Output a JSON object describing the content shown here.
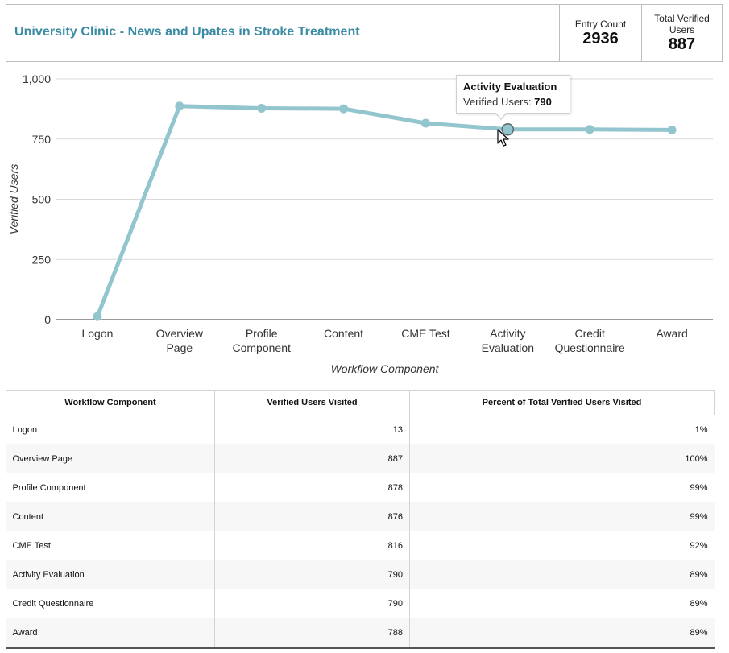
{
  "header": {
    "title": "University Clinic - News and Upates in Stroke Treatment",
    "entry_count_label": "Entry Count",
    "entry_count_value": "2936",
    "total_verified_label": "Total Verified Users",
    "total_verified_value": "887"
  },
  "chart_data": {
    "type": "line",
    "categories": [
      "Logon",
      "Overview Page",
      "Profile Component",
      "Content",
      "CME Test",
      "Activity Evaluation",
      "Credit Questionnaire",
      "Award"
    ],
    "category_lines": [
      [
        "Logon"
      ],
      [
        "Overview",
        "Page"
      ],
      [
        "Profile",
        "Component"
      ],
      [
        "Content"
      ],
      [
        "CME Test"
      ],
      [
        "Activity",
        "Evaluation"
      ],
      [
        "Credit",
        "Questionnaire"
      ],
      [
        "Award"
      ]
    ],
    "series": [
      {
        "values": [
          13,
          887,
          878,
          876,
          816,
          790,
          790,
          788
        ]
      }
    ],
    "xlabel": "Workflow Component",
    "ylabel": "Verified Users",
    "ylim": [
      0,
      1000
    ],
    "yticks": [
      0,
      250,
      500,
      750,
      1000
    ],
    "ytick_labels": [
      "0",
      "250",
      "500",
      "750",
      "1,000"
    ],
    "grid": true,
    "line_color": "#93c5ce",
    "tooltip": {
      "title": "Activity Evaluation",
      "label": "Verified Users:",
      "value": "790"
    }
  },
  "table": {
    "columns": [
      "Workflow Component",
      "Verified Users Visited",
      "Percent of Total Verified Users Visited"
    ],
    "rows": [
      [
        "Logon",
        "13",
        "1%"
      ],
      [
        "Overview Page",
        "887",
        "100%"
      ],
      [
        "Profile Component",
        "878",
        "99%"
      ],
      [
        "Content",
        "876",
        "99%"
      ],
      [
        "CME Test",
        "816",
        "92%"
      ],
      [
        "Activity Evaluation",
        "790",
        "89%"
      ],
      [
        "Credit Questionnaire",
        "790",
        "89%"
      ],
      [
        "Award",
        "788",
        "89%"
      ]
    ]
  }
}
